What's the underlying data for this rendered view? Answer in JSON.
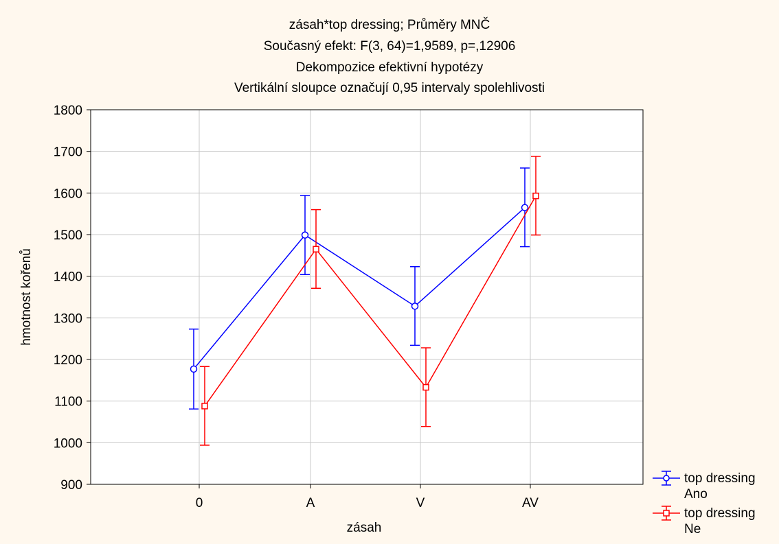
{
  "chart_data": {
    "type": "line",
    "title_lines": [
      "zásah*top dressing; Průměry MNČ",
      "Současný efekt: F(3, 64)=1,9589, p=,12906",
      "Dekompozice efektivní hypotézy",
      "Vertikální sloupce označují 0,95 intervaly spolehlivosti"
    ],
    "xlabel": "zásah",
    "ylabel": "hmotnost kořenů",
    "categories": [
      "0",
      "A",
      "V",
      "AV"
    ],
    "ylim": [
      900,
      1800
    ],
    "yticks": [
      900,
      1000,
      1100,
      1200,
      1300,
      1400,
      1500,
      1600,
      1700,
      1800
    ],
    "grid": true,
    "legend_position": "right-bottom",
    "series": [
      {
        "name_line1": "top dressing",
        "name_line2": "Ano",
        "color": "#0000ff",
        "marker": "circle",
        "values": [
          1177,
          1499,
          1328,
          1565
        ],
        "ci_low": [
          1081,
          1404,
          1234,
          1471
        ],
        "ci_high": [
          1273,
          1594,
          1423,
          1660
        ]
      },
      {
        "name_line1": "top dressing",
        "name_line2": "Ne",
        "color": "#ff0000",
        "marker": "square",
        "values": [
          1088,
          1465,
          1133,
          1593
        ],
        "ci_low": [
          994,
          1371,
          1039,
          1499
        ],
        "ci_high": [
          1183,
          1560,
          1228,
          1688
        ]
      }
    ]
  }
}
